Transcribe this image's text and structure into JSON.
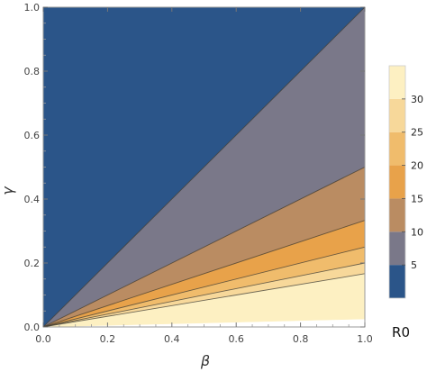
{
  "chart_data": {
    "type": "contour",
    "xlabel": "β",
    "ylabel": "γ",
    "xlim": [
      0.0,
      1.0
    ],
    "ylim": [
      0.0,
      1.0
    ],
    "x_ticks": [
      "0.0",
      "0.2",
      "0.4",
      "0.6",
      "0.8",
      "1.0"
    ],
    "y_ticks": [
      "0.0",
      "0.2",
      "0.4",
      "0.6",
      "0.8",
      "1.0"
    ],
    "function": "R0 = β / γ",
    "contour_levels": [
      1,
      2,
      3,
      4,
      5,
      6
    ],
    "bands": [
      {
        "range": [
          0,
          1
        ],
        "color": "#2b5589"
      },
      {
        "range": [
          1,
          2
        ],
        "color": "#7a7889"
      },
      {
        "range": [
          2,
          3
        ],
        "color": "#ba8c62"
      },
      {
        "range": [
          3,
          4
        ],
        "color": "#e8a24a"
      },
      {
        "range": [
          4,
          5
        ],
        "color": "#f0bc6c"
      },
      {
        "range": [
          5,
          6
        ],
        "color": "#f7d89a"
      },
      {
        "range": [
          6,
          40
        ],
        "color": "#fdf0c2"
      }
    ],
    "grid": false,
    "legend": {
      "title": "R0",
      "placement": "right",
      "ticks": [
        "5",
        "10",
        "15",
        "20",
        "25",
        "30"
      ],
      "tick_values": [
        5,
        10,
        15,
        20,
        25,
        30
      ],
      "range": [
        0,
        35
      ],
      "colors": [
        "#2b5589",
        "#7a7889",
        "#ba8c62",
        "#e8a24a",
        "#f0bc6c",
        "#f7d89a",
        "#fdf0c2"
      ]
    }
  }
}
